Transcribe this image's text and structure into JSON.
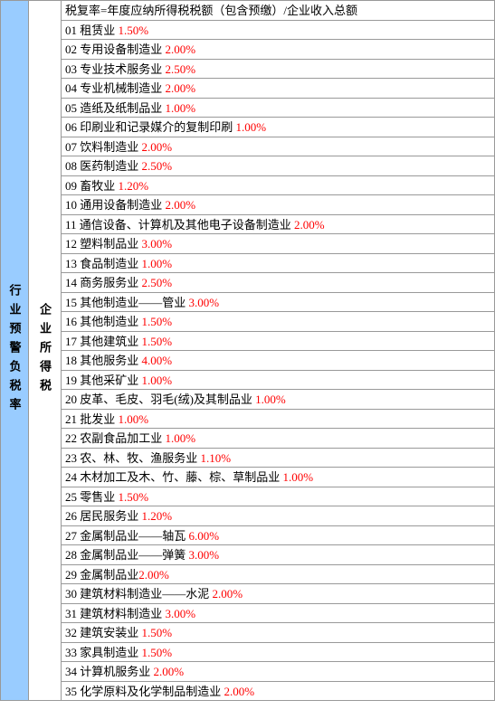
{
  "header_label": "行业预警负税率",
  "sub_label": "企业所得税",
  "formula": "税复率=年度应纳所得税税额（包含预缴）/企业收入总额",
  "colors": {
    "left_bg": "#99ccff",
    "rate_color": "#ff0000",
    "text_color": "#000000",
    "border_color": "#999999"
  },
  "rows": [
    {
      "num": "01",
      "label": "租赁业",
      "rate": "1.50%"
    },
    {
      "num": "02",
      "label": "专用设备制造业",
      "rate": "2.00%"
    },
    {
      "num": "03",
      "label": "专业技术服务业",
      "rate": "2.50%"
    },
    {
      "num": "04",
      "label": "专业机械制造业",
      "rate": "2.00%"
    },
    {
      "num": "05",
      "label": "造纸及纸制品业",
      "rate": "1.00%"
    },
    {
      "num": "06",
      "label": "印刷业和记录媒介的复制印刷",
      "rate": "1.00%"
    },
    {
      "num": "07",
      "label": "饮料制造业",
      "rate": "2.00%"
    },
    {
      "num": "08",
      "label": "医药制造业",
      "rate": "2.50%"
    },
    {
      "num": "09",
      "label": "畜牧业",
      "rate": "1.20%"
    },
    {
      "num": "10",
      "label": "通用设备制造业",
      "rate": "2.00%"
    },
    {
      "num": "11",
      "label": "通信设备、计算机及其他电子设备制造业",
      "rate": "2.00%"
    },
    {
      "num": "12",
      "label": "塑料制品业",
      "rate": "3.00%"
    },
    {
      "num": "13",
      "label": "食品制造业",
      "rate": "1.00%"
    },
    {
      "num": "14",
      "label": "商务服务业",
      "rate": "2.50%"
    },
    {
      "num": "15",
      "label": "其他制造业——管业",
      "rate": "3.00%"
    },
    {
      "num": "16",
      "label": "其他制造业",
      "rate": "1.50%"
    },
    {
      "num": "17",
      "label": "其他建筑业",
      "rate": "1.50%"
    },
    {
      "num": "18",
      "label": "其他服务业",
      "rate": "4.00%"
    },
    {
      "num": "19",
      "label": "其他采矿业",
      "rate": "1.00%"
    },
    {
      "num": "20",
      "label": "皮革、毛皮、羽毛(绒)及其制品业",
      "rate": "1.00%"
    },
    {
      "num": "21",
      "label": "批发业",
      "rate": "1.00%"
    },
    {
      "num": "22",
      "label": "农副食品加工业",
      "rate": "1.00%"
    },
    {
      "num": "23",
      "label": "农、林、牧、渔服务业",
      "rate": "1.10%"
    },
    {
      "num": "24",
      "label": "木材加工及木、竹、藤、棕、草制品业",
      "rate": "1.00%"
    },
    {
      "num": "25",
      "label": "零售业",
      "rate": "1.50%"
    },
    {
      "num": "26",
      "label": "居民服务业",
      "rate": "1.20%"
    },
    {
      "num": "27",
      "label": "金属制品业——轴瓦",
      "rate": "6.00%"
    },
    {
      "num": "28",
      "label": "金属制品业——弹簧",
      "rate": "3.00%"
    },
    {
      "num": "29",
      "label": "金属制品业",
      "rate": "2.00%",
      "nospace": true
    },
    {
      "num": "30",
      "label": "建筑材料制造业——水泥",
      "rate": "2.00%"
    },
    {
      "num": "31",
      "label": "建筑材料制造业",
      "rate": "3.00%"
    },
    {
      "num": "32",
      "label": "建筑安装业",
      "rate": "1.50%"
    },
    {
      "num": "33",
      "label": "家具制造业",
      "rate": "1.50%"
    },
    {
      "num": "34",
      "label": "计算机服务业",
      "rate": "2.00%"
    },
    {
      "num": "35",
      "label": "化学原料及化学制品制造业",
      "rate": "2.00%"
    }
  ]
}
